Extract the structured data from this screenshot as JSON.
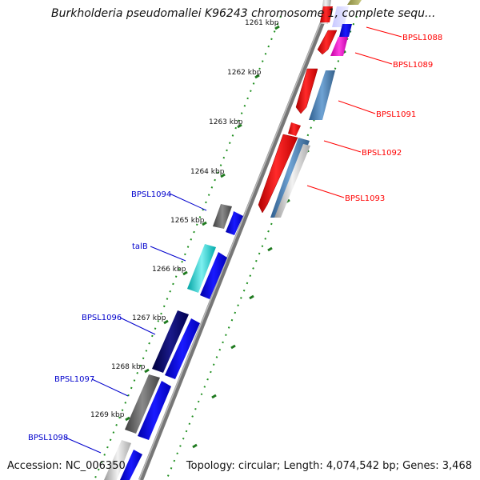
{
  "header": {
    "title": "Burkholderia pseudomallei K96243 chromosome 1, complete sequ..."
  },
  "footer": {
    "accession": "Accession: NC_006350",
    "topology": "Topology: circular; Length: 4,074,542 bp; Genes: 3,468"
  },
  "scale": {
    "ticks": [
      "1261 kbp",
      "1262 kbp",
      "1263 kbp",
      "1264 kbp",
      "1265 kbp",
      "1266 kbp",
      "1267 kbp",
      "1268 kbp",
      "1269 kbp"
    ]
  },
  "genes": {
    "right_labels": [
      "BPSL1088",
      "BPSL1089",
      "BPSL1091",
      "BPSL1092",
      "BPSL1093"
    ],
    "left_labels": [
      "BPSL1094",
      "talB",
      "BPSL1096",
      "BPSL1097",
      "BPSL1098"
    ]
  },
  "colors": {
    "reverse_strand_gene": "#ff0000",
    "forward_strand_gene": "#0000ff",
    "label_right": "#ff0000",
    "label_left": "#0000cc",
    "backbone": "#888888",
    "tick_dots": "#228b22"
  }
}
